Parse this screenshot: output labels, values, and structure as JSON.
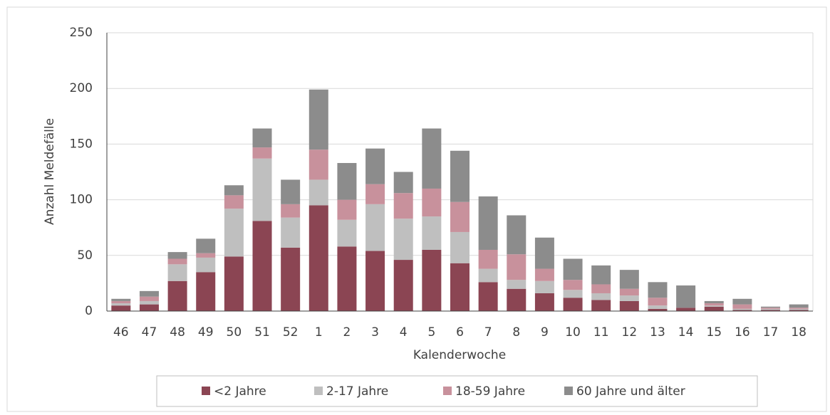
{
  "chart_data": {
    "type": "bar",
    "stacked": true,
    "y_label": "Anzahl Meldefälle",
    "x_label": "Kalenderwoche",
    "categories": [
      "46",
      "47",
      "48",
      "49",
      "50",
      "51",
      "52",
      "1",
      "2",
      "3",
      "4",
      "5",
      "6",
      "7",
      "8",
      "9",
      "10",
      "11",
      "12",
      "13",
      "14",
      "15",
      "16",
      "17",
      "18"
    ],
    "series": [
      {
        "name": "<2 Jahre",
        "color": "#8b4553",
        "values": [
          5,
          6,
          27,
          35,
          49,
          81,
          57,
          95,
          58,
          54,
          46,
          55,
          43,
          26,
          20,
          16,
          12,
          10,
          9,
          2,
          3,
          4,
          1,
          1,
          1
        ]
      },
      {
        "name": "2-17 Jahre",
        "color": "#bfbfbf",
        "values": [
          2,
          3,
          15,
          13,
          43,
          56,
          27,
          23,
          24,
          42,
          37,
          30,
          28,
          12,
          8,
          11,
          7,
          6,
          5,
          3,
          0,
          1,
          1,
          1,
          1
        ]
      },
      {
        "name": "18-59 Jahre",
        "color": "#c8919c",
        "values": [
          2,
          4,
          5,
          4,
          12,
          10,
          12,
          27,
          18,
          18,
          23,
          25,
          27,
          17,
          23,
          11,
          9,
          8,
          6,
          7,
          0,
          2,
          4,
          1,
          1
        ]
      },
      {
        "name": "60 Jahre und älter",
        "color": "#8c8c8c",
        "values": [
          2,
          5,
          6,
          13,
          9,
          17,
          22,
          54,
          33,
          32,
          19,
          54,
          46,
          48,
          35,
          28,
          19,
          17,
          17,
          14,
          20,
          2,
          5,
          1,
          3
        ]
      }
    ],
    "ylim": [
      0,
      250
    ],
    "yticks": [
      0,
      50,
      100,
      150,
      200,
      250
    ],
    "grid": true,
    "legend": "bottom"
  }
}
